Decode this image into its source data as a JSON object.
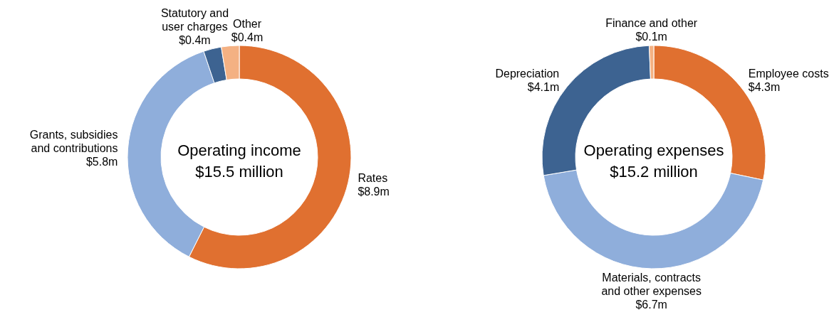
{
  "chart_data": [
    {
      "type": "donut",
      "title": "Operating income",
      "subtitle": "$15.5 million",
      "categories": [
        "Rates",
        "Grants, subsidies and contributions",
        "Statutory and user charges",
        "Other"
      ],
      "values": [
        8.9,
        5.8,
        0.4,
        0.4
      ],
      "value_labels": [
        "$8.9m",
        "$5.8m",
        "$0.4m",
        "$0.4m"
      ],
      "colors": [
        "#e07030",
        "#8faedb",
        "#3d6391",
        "#f4b183"
      ]
    },
    {
      "type": "donut",
      "title": "Operating expenses",
      "subtitle": "$15.2 million",
      "categories": [
        "Employee costs",
        "Materials, contracts and other expenses",
        "Depreciation",
        "Finance and other"
      ],
      "values": [
        4.3,
        6.7,
        4.1,
        0.1
      ],
      "value_labels": [
        "$4.3m",
        "$6.7m",
        "$4.1m",
        "$0.1m"
      ],
      "colors": [
        "#e07030",
        "#8faedb",
        "#3d6391",
        "#f4b183"
      ]
    }
  ]
}
